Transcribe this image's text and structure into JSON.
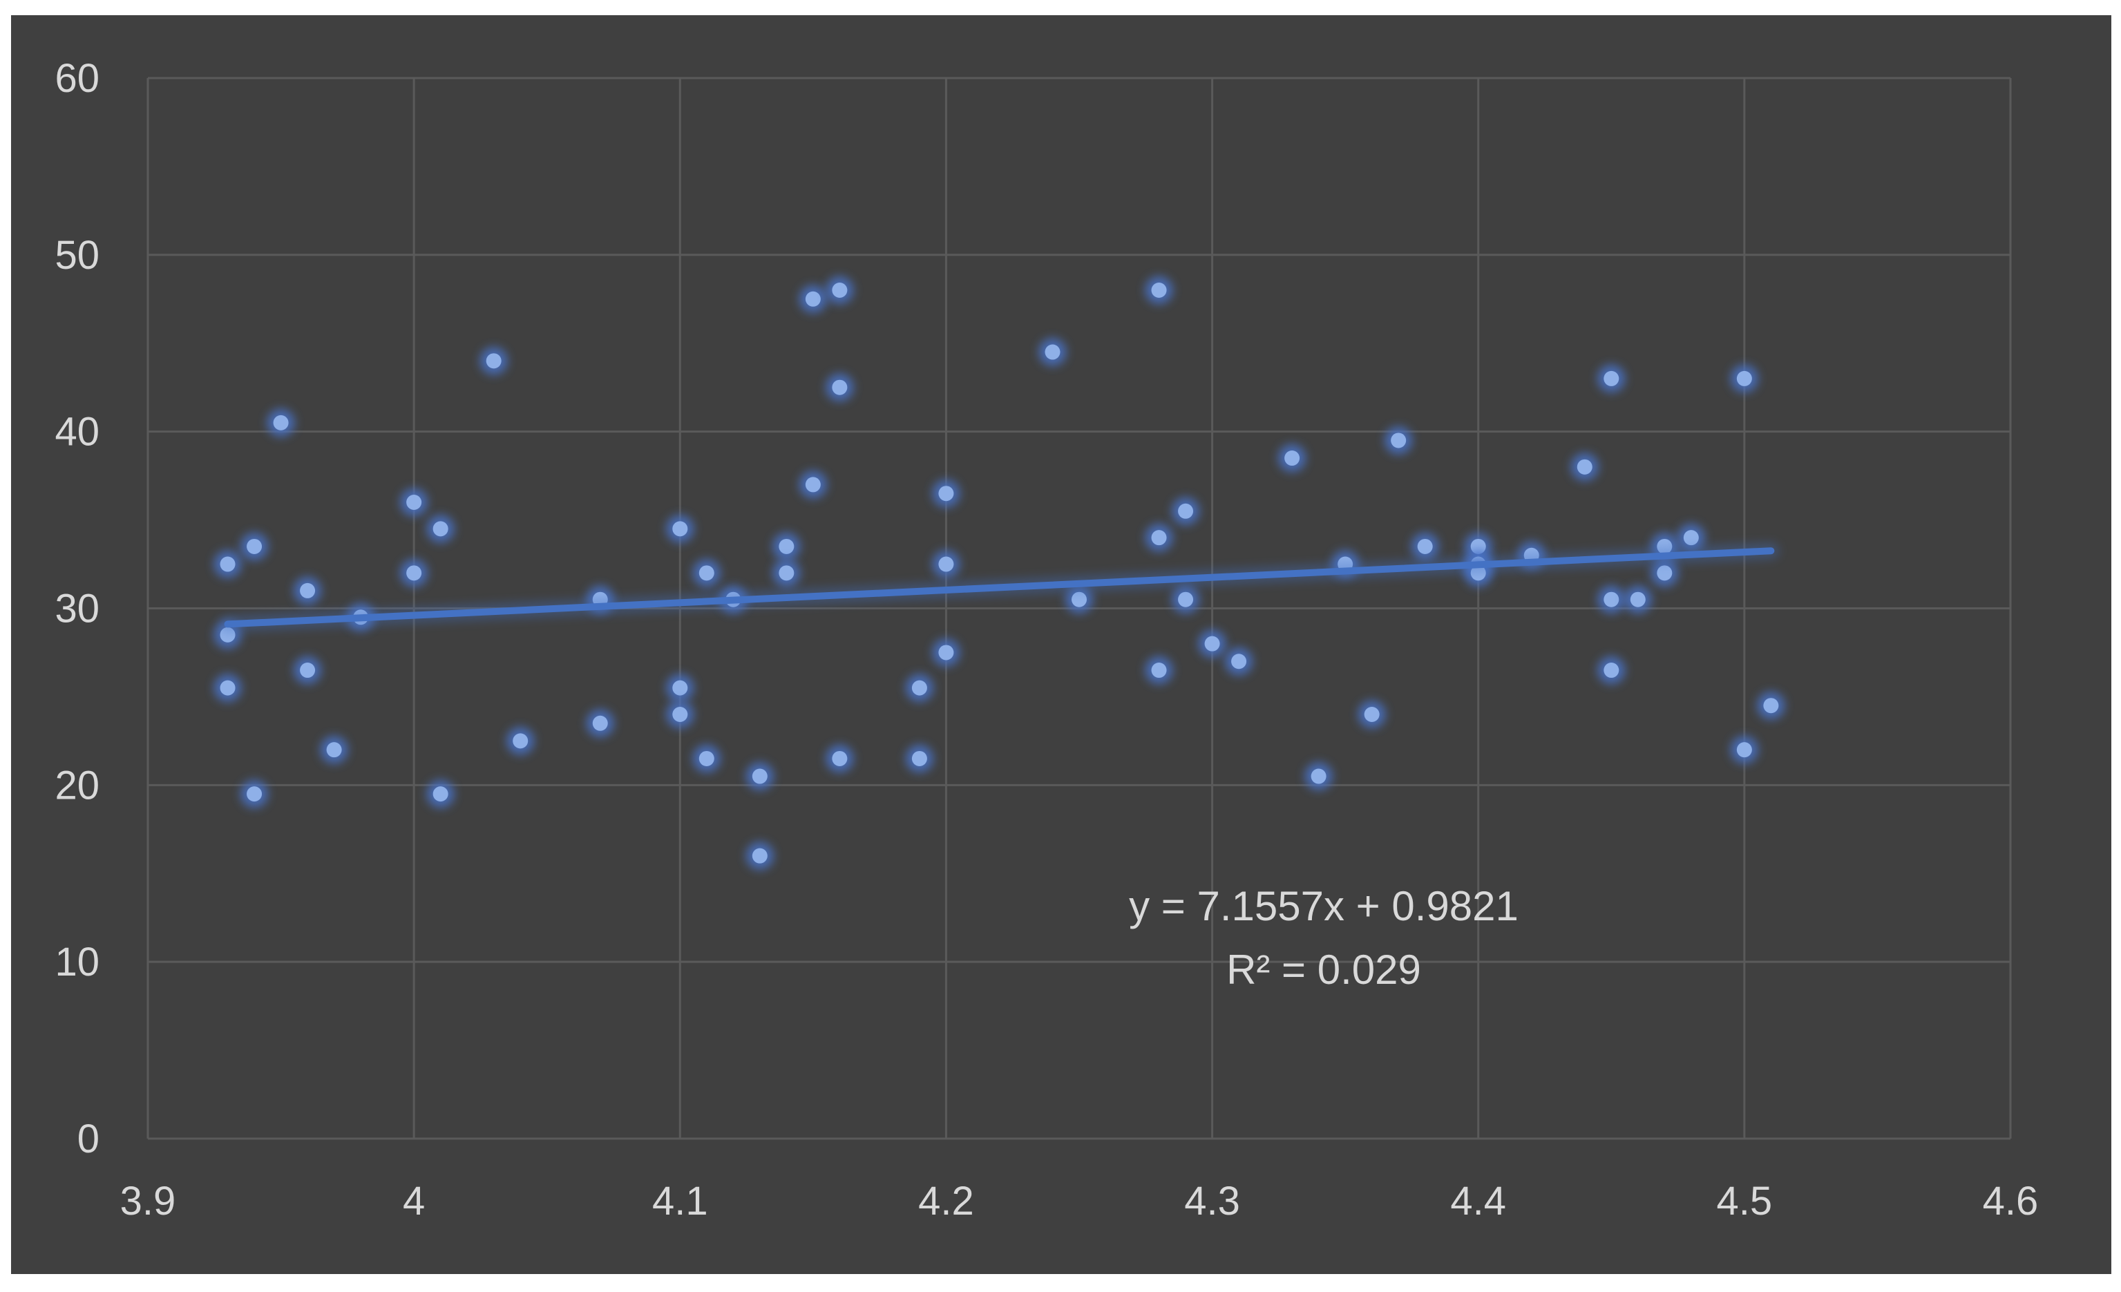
{
  "chart_data": {
    "type": "scatter",
    "title": "",
    "xlabel": "",
    "ylabel": "",
    "xlim": [
      3.9,
      4.6
    ],
    "ylim": [
      0,
      60
    ],
    "x_ticks": [
      3.9,
      4.0,
      4.1,
      4.2,
      4.3,
      4.4,
      4.5,
      4.6
    ],
    "x_tick_labels": [
      "3.9",
      "4",
      "4.1",
      "4.2",
      "4.3",
      "4.4",
      "4.5",
      "4.6"
    ],
    "y_ticks": [
      0,
      10,
      20,
      30,
      40,
      50,
      60
    ],
    "y_tick_labels": [
      "0",
      "10",
      "20",
      "30",
      "40",
      "50",
      "60"
    ],
    "grid": true,
    "legend": "none",
    "colors": {
      "background": "#404040",
      "plot_background": "#404040",
      "gridline": "#5a5a5a",
      "marker": "#8fb0e8",
      "marker_glow": "#4a73c9",
      "trendline": "#4472c4",
      "text": "#d9d9d9"
    },
    "series": [
      {
        "points": [
          [
            3.93,
            32.5
          ],
          [
            3.93,
            28.5
          ],
          [
            3.93,
            25.5
          ],
          [
            3.94,
            33.5
          ],
          [
            3.94,
            19.5
          ],
          [
            3.95,
            40.5
          ],
          [
            3.96,
            31.0
          ],
          [
            3.96,
            26.5
          ],
          [
            3.97,
            22.0
          ],
          [
            3.98,
            29.5
          ],
          [
            4.0,
            36.0
          ],
          [
            4.0,
            32.0
          ],
          [
            4.01,
            34.5
          ],
          [
            4.01,
            19.5
          ],
          [
            4.03,
            44.0
          ],
          [
            4.04,
            22.5
          ],
          [
            4.07,
            30.5
          ],
          [
            4.07,
            23.5
          ],
          [
            4.1,
            34.5
          ],
          [
            4.1,
            25.5
          ],
          [
            4.1,
            24.0
          ],
          [
            4.11,
            32.0
          ],
          [
            4.11,
            21.5
          ],
          [
            4.12,
            30.5
          ],
          [
            4.13,
            20.5
          ],
          [
            4.13,
            16.0
          ],
          [
            4.14,
            33.5
          ],
          [
            4.14,
            32.0
          ],
          [
            4.15,
            47.5
          ],
          [
            4.15,
            37.0
          ],
          [
            4.16,
            48.0
          ],
          [
            4.16,
            42.5
          ],
          [
            4.16,
            21.5
          ],
          [
            4.19,
            25.5
          ],
          [
            4.19,
            21.5
          ],
          [
            4.2,
            36.5
          ],
          [
            4.2,
            32.5
          ],
          [
            4.2,
            27.5
          ],
          [
            4.24,
            44.5
          ],
          [
            4.25,
            30.5
          ],
          [
            4.28,
            48.0
          ],
          [
            4.28,
            34.0
          ],
          [
            4.28,
            26.5
          ],
          [
            4.29,
            35.5
          ],
          [
            4.29,
            30.5
          ],
          [
            4.3,
            28.0
          ],
          [
            4.31,
            27.0
          ],
          [
            4.33,
            38.5
          ],
          [
            4.34,
            20.5
          ],
          [
            4.35,
            32.5
          ],
          [
            4.36,
            24.0
          ],
          [
            4.37,
            39.5
          ],
          [
            4.38,
            33.5
          ],
          [
            4.4,
            33.5
          ],
          [
            4.4,
            32.5
          ],
          [
            4.4,
            32.0
          ],
          [
            4.42,
            33.0
          ],
          [
            4.44,
            38.0
          ],
          [
            4.45,
            43.0
          ],
          [
            4.45,
            30.5
          ],
          [
            4.45,
            26.5
          ],
          [
            4.46,
            30.5
          ],
          [
            4.47,
            33.5
          ],
          [
            4.47,
            32.0
          ],
          [
            4.48,
            34.0
          ],
          [
            4.5,
            43.0
          ],
          [
            4.5,
            22.0
          ],
          [
            4.51,
            24.5
          ]
        ]
      }
    ],
    "trendline": {
      "type": "linear",
      "slope": 7.1557,
      "intercept": 0.9821,
      "x_range": [
        3.93,
        4.51
      ],
      "equation_label": "y = 7.1557x + 0.9821",
      "r2_label": "R² = 0.029"
    }
  }
}
